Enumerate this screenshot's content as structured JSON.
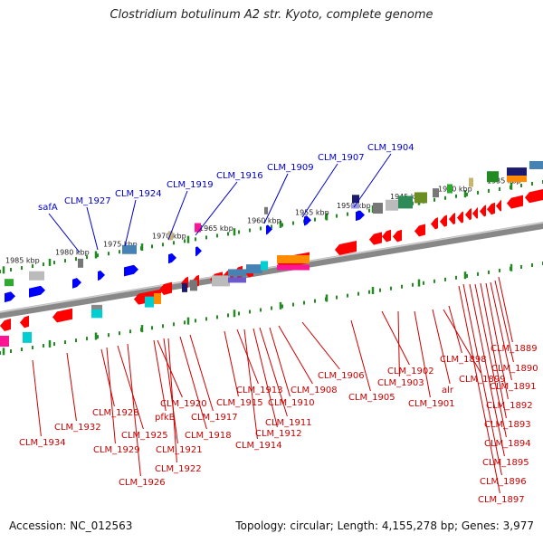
{
  "title": "Clostridium botulinum A2 str. Kyoto, complete genome",
  "footer": {
    "accession": "Accession: NC_012563",
    "summary": "Topology: circular; Length: 4,155,278 bp; Genes: 3,977"
  },
  "colors": {
    "forward_label": "#0000cc",
    "reverse_label": "#cc0000",
    "forward_gene": "#0000ff",
    "reverse_gene": "#ff0000",
    "scale_tick": "#228b22",
    "backbone": "#888888"
  },
  "scale_labels": [
    "1985 kbp",
    "1980 kbp",
    "1975 kbp",
    "1970 kbp",
    "1965 kbp",
    "1960 kbp",
    "1955 kbp",
    "1950 kbp",
    "1945 kbp",
    "1940 kbp",
    "1935 kbp"
  ],
  "forward_genes": [
    "safA",
    "CLM_1927",
    "CLM_1924",
    "CLM_1919",
    "CLM_1916",
    "CLM_1909",
    "CLM_1907",
    "CLM_1904"
  ],
  "reverse_genes": [
    "CLM_1934",
    "CLM_1932",
    "CLM_1928",
    "CLM_1929",
    "CLM_1925",
    "CLM_1926",
    "CLM_1920",
    "pfkB",
    "CLM_1921",
    "CLM_1922",
    "CLM_1918",
    "CLM_1917",
    "CLM_1915",
    "CLM_1913",
    "CLM_1914",
    "CLM_1912",
    "CLM_1911",
    "CLM_1910",
    "CLM_1908",
    "CLM_1906",
    "CLM_1905",
    "CLM_1902",
    "CLM_1903",
    "CLM_1901",
    "alr",
    "CLM_1899",
    "CLM_1898",
    "CLM_1897",
    "CLM_1896",
    "CLM_1895",
    "CLM_1894",
    "CLM_1893",
    "CLM_1892",
    "CLM_1891",
    "CLM_1890",
    "CLM_1889"
  ]
}
